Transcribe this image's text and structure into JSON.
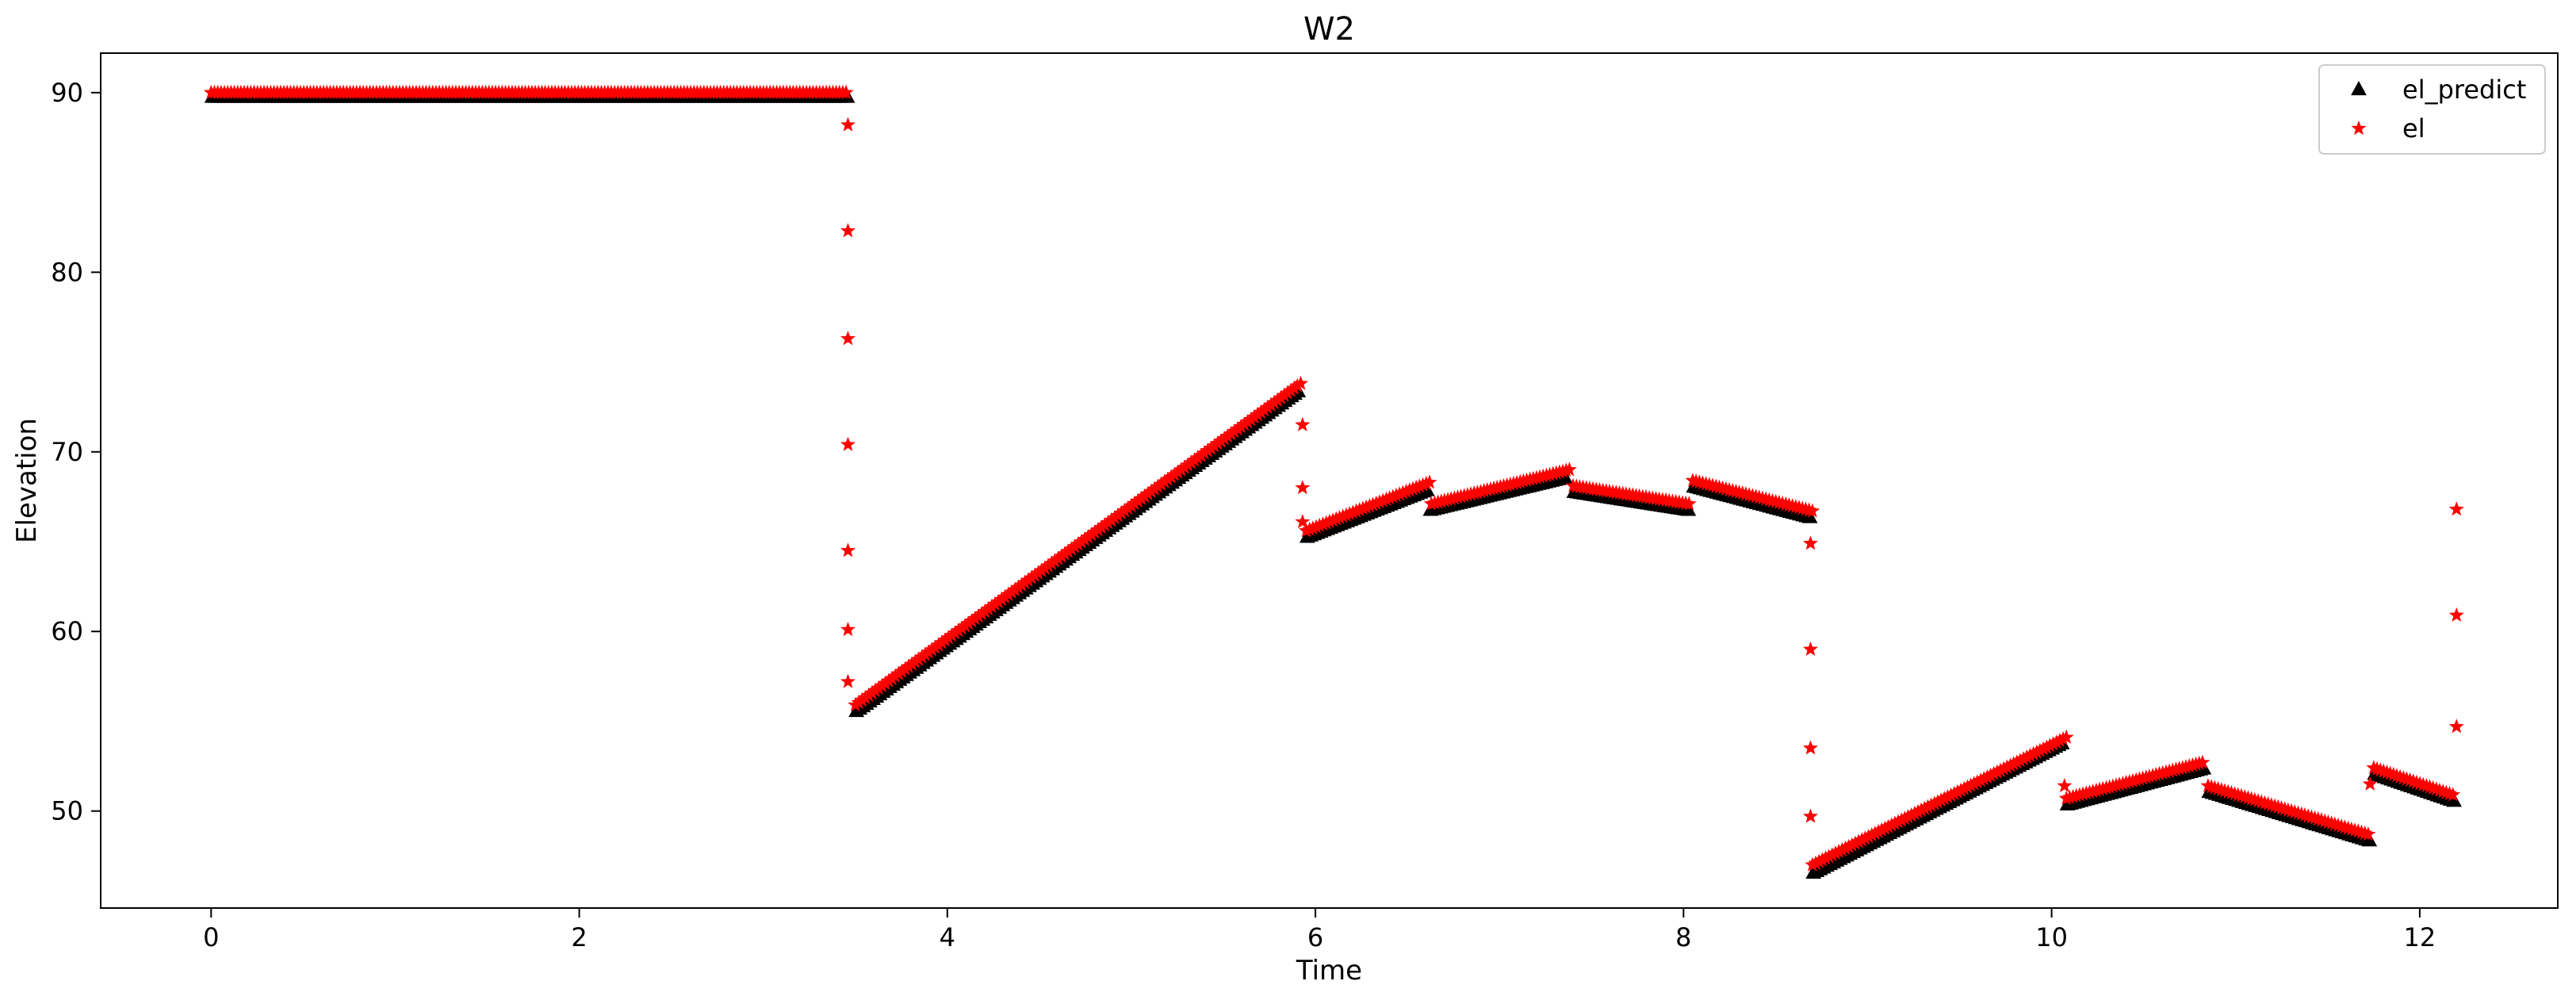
{
  "chart_data": {
    "type": "scatter",
    "title": "W2",
    "xlabel": "Time",
    "ylabel": "Elevation",
    "xlim": [
      -0.6,
      12.75
    ],
    "ylim": [
      44.6,
      92.2
    ],
    "xticks": [
      0,
      2,
      4,
      6,
      8,
      10,
      12
    ],
    "yticks": [
      50,
      60,
      70,
      80,
      90
    ],
    "grid": false,
    "legend_position": "top-right",
    "series": [
      {
        "name": "el_predict",
        "marker": "triangle",
        "color": "#000000",
        "segments": [
          {
            "x_start": 0.0,
            "x_end": 3.45,
            "y_start": 90.0,
            "y_end": 90.0,
            "y_peak": null
          },
          {
            "x_start": 3.5,
            "x_end": 5.9,
            "y_start": 55.8,
            "y_end": 73.6,
            "y_peak": null
          },
          {
            "x_start": 5.95,
            "x_end": 6.6,
            "y_start": 65.5,
            "y_end": 68.1,
            "y_peak": null
          },
          {
            "x_start": 6.62,
            "x_end": 7.35,
            "y_start": 67.0,
            "y_end": 68.8,
            "y_peak": null
          },
          {
            "x_start": 7.4,
            "x_end": 8.02,
            "y_start": 68.0,
            "y_end": 67.0,
            "y_peak": null
          },
          {
            "x_start": 8.05,
            "x_end": 8.68,
            "y_start": 68.3,
            "y_end": 66.6,
            "y_peak": null
          },
          {
            "x_start": 8.7,
            "x_end": 10.05,
            "y_start": 46.8,
            "y_end": 54.0,
            "y_peak": null
          },
          {
            "x_start": 10.08,
            "x_end": 10.82,
            "y_start": 50.6,
            "y_end": 52.6,
            "y_peak": null
          },
          {
            "x_start": 10.85,
            "x_end": 11.72,
            "y_start": 51.3,
            "y_end": 48.6,
            "y_peak": null
          },
          {
            "x_start": 11.75,
            "x_end": 12.18,
            "y_start": 52.3,
            "y_end": 50.8,
            "y_peak": null
          }
        ]
      },
      {
        "name": "el",
        "marker": "star",
        "color": "#ff0000",
        "segments": [
          {
            "x_start": 0.0,
            "x_end": 3.45,
            "y_start": 90.0,
            "y_end": 90.0,
            "y_peak": null
          },
          {
            "x_start": 3.5,
            "x_end": 5.92,
            "y_start": 55.9,
            "y_end": 73.8,
            "y_peak": null
          },
          {
            "x_start": 5.95,
            "x_end": 6.62,
            "y_start": 65.6,
            "y_end": 68.3,
            "y_peak": null
          },
          {
            "x_start": 6.63,
            "x_end": 7.38,
            "y_start": 67.1,
            "y_end": 69.0,
            "y_peak": null
          },
          {
            "x_start": 7.4,
            "x_end": 8.03,
            "y_start": 68.1,
            "y_end": 67.1,
            "y_peak": null
          },
          {
            "x_start": 8.05,
            "x_end": 8.7,
            "y_start": 68.4,
            "y_end": 66.7,
            "y_peak": null
          },
          {
            "x_start": 8.7,
            "x_end": 10.08,
            "y_start": 47.0,
            "y_end": 54.1,
            "y_peak": null
          },
          {
            "x_start": 10.08,
            "x_end": 10.82,
            "y_start": 50.7,
            "y_end": 52.7,
            "y_peak": null
          },
          {
            "x_start": 10.85,
            "x_end": 11.72,
            "y_start": 51.4,
            "y_end": 48.7,
            "y_peak": null
          },
          {
            "x_start": 11.75,
            "x_end": 12.18,
            "y_start": 52.4,
            "y_end": 50.9,
            "y_peak": null
          }
        ],
        "transition_points": [
          {
            "x": 3.46,
            "y": 88.2
          },
          {
            "x": 3.46,
            "y": 82.3
          },
          {
            "x": 3.46,
            "y": 76.3
          },
          {
            "x": 3.46,
            "y": 70.4
          },
          {
            "x": 3.46,
            "y": 64.5
          },
          {
            "x": 3.46,
            "y": 60.1
          },
          {
            "x": 3.46,
            "y": 57.2
          },
          {
            "x": 5.93,
            "y": 71.5
          },
          {
            "x": 5.93,
            "y": 68.0
          },
          {
            "x": 5.93,
            "y": 66.1
          },
          {
            "x": 8.69,
            "y": 64.9
          },
          {
            "x": 8.69,
            "y": 59.0
          },
          {
            "x": 8.69,
            "y": 53.5
          },
          {
            "x": 8.69,
            "y": 49.7
          },
          {
            "x": 10.07,
            "y": 51.4
          },
          {
            "x": 11.73,
            "y": 51.5
          },
          {
            "x": 12.2,
            "y": 54.7
          },
          {
            "x": 12.2,
            "y": 60.9
          },
          {
            "x": 12.2,
            "y": 66.8
          }
        ]
      }
    ]
  }
}
